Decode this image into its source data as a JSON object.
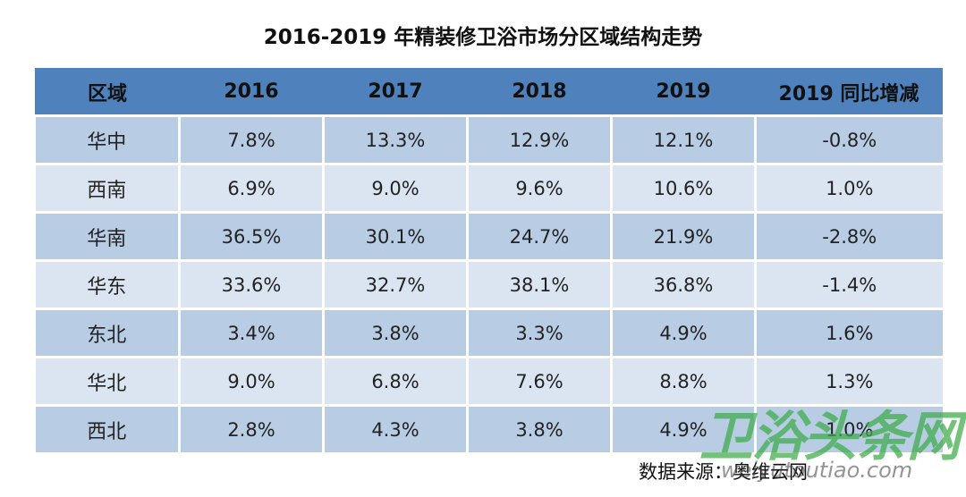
{
  "title": "2016-2019 年精装修卫浴市场分区域结构走势",
  "headers": [
    "区域",
    "2016",
    "2017",
    "2018",
    "2019",
    "2019 同比增减"
  ],
  "rows": [
    [
      "华中",
      "7.8%",
      "13.3%",
      "12.9%",
      "12.1%",
      "-0.8%"
    ],
    [
      "西南",
      "6.9%",
      "9.0%",
      "9.6%",
      "10.6%",
      "1.0%"
    ],
    [
      "华南",
      "36.5%",
      "30.1%",
      "24.7%",
      "21.9%",
      "-2.8%"
    ],
    [
      "华东",
      "33.6%",
      "32.7%",
      "38.1%",
      "36.8%",
      "-1.4%"
    ],
    [
      "东北",
      "3.4%",
      "3.8%",
      "3.3%",
      "4.9%",
      "1.6%"
    ],
    [
      "华北",
      "9.0%",
      "6.8%",
      "7.6%",
      "8.8%",
      "1.3%"
    ],
    [
      "西北",
      "2.8%",
      "4.3%",
      "3.8%",
      "4.9%",
      "1.0%"
    ]
  ],
  "source": "数据来源：奥维云网",
  "watermark": {
    "logo_text": "卫浴头条网",
    "url_text": "weiyutoutiao.com",
    "color": "#3caa46"
  },
  "colors": {
    "header_bg": "#4f81bd",
    "row_odd_bg": "#b8cce4",
    "row_even_bg": "#dbe5f1"
  }
}
